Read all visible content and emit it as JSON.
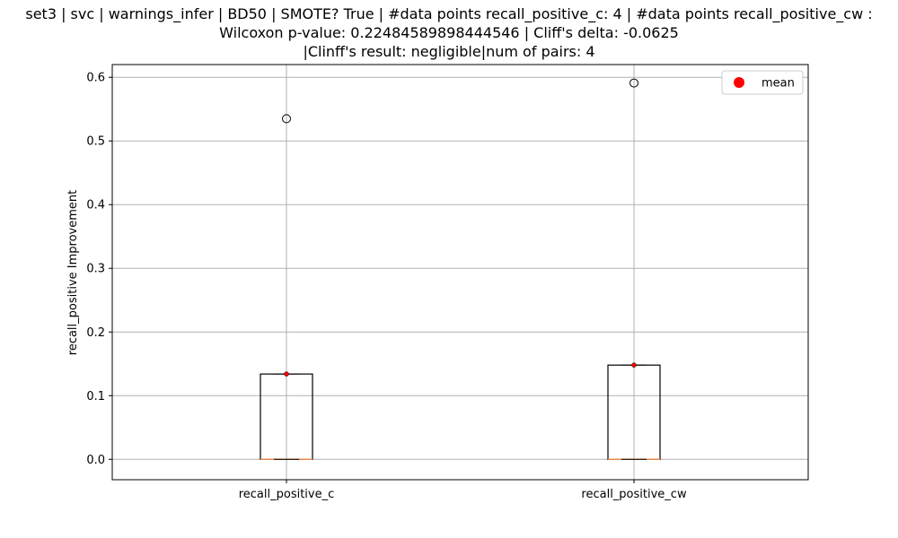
{
  "chart_data": {
    "type": "box",
    "title_lines": [
      "set3 | svc | warnings_infer | BD50 | SMOTE? True | #data points recall_positive_c: 4 | #data points recall_positive_cw :",
      "Wilcoxon p-value: 0.22484589898444546 | Cliff's delta: -0.0625",
      "|Clinff's result: negligible|num of pairs: 4"
    ],
    "xlabel": "",
    "ylabel": "recall_positive Improvement",
    "ylim": [
      -0.032,
      0.62
    ],
    "yticks": [
      0.0,
      0.1,
      0.2,
      0.3,
      0.4,
      0.5,
      0.6
    ],
    "ytick_labels": [
      "0.0",
      "0.1",
      "0.2",
      "0.3",
      "0.4",
      "0.5",
      "0.6"
    ],
    "grid": true,
    "legend": {
      "position": "top-right",
      "entries": [
        {
          "label": "mean",
          "color": "#ff0000",
          "marker": "circle"
        }
      ]
    },
    "colors": {
      "box": "#000000",
      "median": "#e8884a",
      "mean": "#ff0000",
      "grid": "#b0b0b0"
    },
    "categories": [
      "recall_positive_c",
      "recall_positive_cw"
    ],
    "boxes": [
      {
        "name": "recall_positive_c",
        "q1": 0.0,
        "median": 0.0,
        "q3": 0.134,
        "whisker_low": 0.0,
        "whisker_high": 0.134,
        "mean": 0.134,
        "outliers": [
          0.535
        ]
      },
      {
        "name": "recall_positive_cw",
        "q1": 0.0,
        "median": 0.0,
        "q3": 0.148,
        "whisker_low": 0.0,
        "whisker_high": 0.148,
        "mean": 0.148,
        "outliers": [
          0.591
        ]
      }
    ]
  }
}
